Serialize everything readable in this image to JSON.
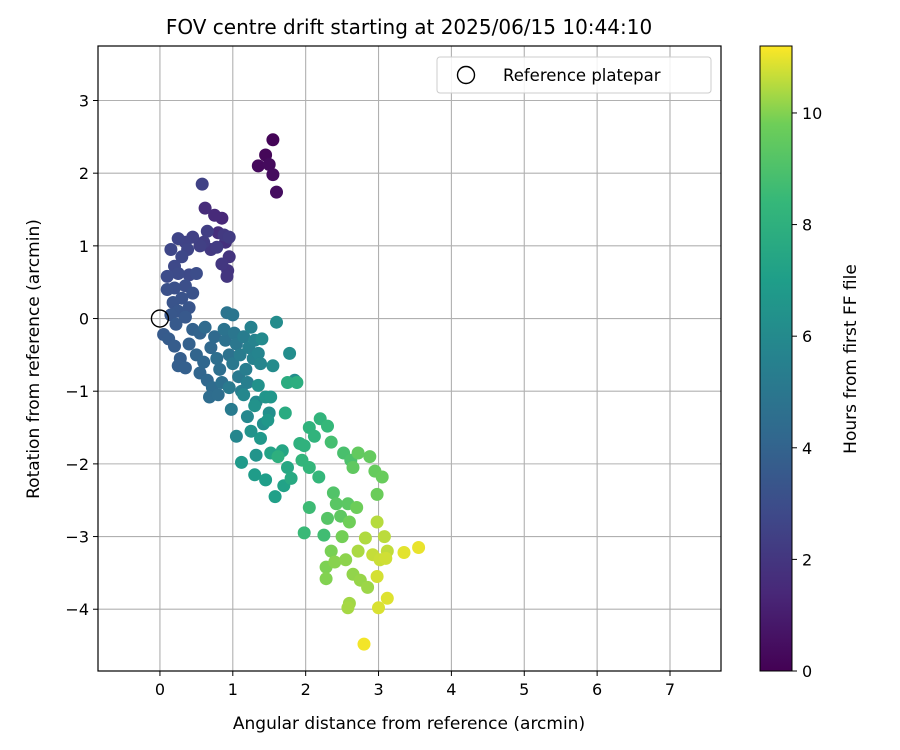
{
  "chart_data": {
    "type": "scatter",
    "title": "FOV centre drift starting at 2025/06/15 10:44:10",
    "xlabel": "Angular distance from reference (arcmin)",
    "ylabel": "Rotation from reference (arcmin)",
    "xlim": [
      -0.85,
      7.7
    ],
    "ylim": [
      -4.85,
      3.75
    ],
    "xticks": [
      0,
      1,
      2,
      3,
      4,
      5,
      6,
      7
    ],
    "yticks": [
      -4,
      -3,
      -2,
      -1,
      0,
      1,
      2,
      3
    ],
    "grid": true,
    "legend": {
      "placement": "top-right",
      "entries": [
        "Reference platepar"
      ]
    },
    "reference_point": {
      "x": 0,
      "y": 0,
      "name": "Reference platepar"
    },
    "colorbar": {
      "label": "Hours from first FF file",
      "range": [
        0,
        11.2
      ],
      "ticks": [
        0,
        2,
        4,
        6,
        8,
        10
      ],
      "colormap": "viridis"
    },
    "series": [
      {
        "points": [
          [
            1.55,
            2.46,
            0.1
          ],
          [
            1.45,
            2.25,
            0.2
          ],
          [
            1.35,
            2.1,
            0.3
          ],
          [
            1.5,
            2.12,
            0.35
          ],
          [
            1.55,
            1.98,
            0.4
          ],
          [
            1.6,
            1.74,
            0.45
          ],
          [
            0.85,
            1.38,
            1.4
          ],
          [
            0.75,
            1.42,
            1.5
          ],
          [
            0.62,
            1.52,
            1.6
          ],
          [
            0.8,
            1.18,
            1.7
          ],
          [
            0.9,
            1.05,
            1.8
          ],
          [
            0.95,
            0.85,
            1.9
          ],
          [
            0.93,
            0.66,
            1.95
          ],
          [
            0.92,
            0.58,
            2.0
          ],
          [
            0.85,
            0.75,
            2.05
          ],
          [
            0.7,
            0.95,
            2.1
          ],
          [
            0.88,
            1.15,
            2.15
          ],
          [
            0.78,
            0.98,
            2.2
          ],
          [
            0.95,
            1.12,
            2.25
          ],
          [
            0.6,
            1.05,
            2.3
          ],
          [
            0.65,
            1.2,
            2.35
          ],
          [
            0.55,
            1.0,
            2.4
          ],
          [
            0.45,
            1.12,
            2.45
          ],
          [
            0.58,
            1.85,
            2.5
          ],
          [
            0.35,
            1.05,
            2.55
          ],
          [
            0.25,
            1.1,
            2.6
          ],
          [
            0.38,
            0.95,
            2.65
          ],
          [
            0.15,
            0.95,
            2.7
          ],
          [
            0.3,
            0.85,
            2.75
          ],
          [
            0.2,
            0.72,
            2.8
          ],
          [
            0.4,
            0.6,
            2.85
          ],
          [
            0.25,
            0.62,
            2.9
          ],
          [
            0.1,
            0.58,
            2.95
          ],
          [
            0.5,
            0.62,
            3.0
          ],
          [
            0.35,
            0.45,
            3.05
          ],
          [
            0.2,
            0.42,
            3.1
          ],
          [
            0.1,
            0.4,
            3.15
          ],
          [
            0.45,
            0.35,
            3.2
          ],
          [
            0.3,
            0.28,
            3.25
          ],
          [
            0.18,
            0.22,
            3.3
          ],
          [
            0.4,
            0.15,
            3.35
          ],
          [
            0.25,
            0.1,
            3.4
          ],
          [
            0.15,
            0.05,
            3.45
          ],
          [
            0.35,
            0.02,
            3.5
          ],
          [
            0.22,
            -0.08,
            3.55
          ],
          [
            0.05,
            -0.22,
            3.6
          ],
          [
            0.12,
            -0.28,
            3.65
          ],
          [
            0.2,
            -0.38,
            3.7
          ],
          [
            0.28,
            -0.55,
            3.75
          ],
          [
            0.25,
            -0.65,
            3.8
          ],
          [
            0.35,
            -0.68,
            3.85
          ],
          [
            0.4,
            -0.35,
            3.9
          ],
          [
            0.45,
            -0.15,
            3.95
          ],
          [
            0.55,
            -0.2,
            4.0
          ],
          [
            0.5,
            -0.5,
            4.05
          ],
          [
            0.55,
            -0.75,
            4.1
          ],
          [
            0.6,
            -0.6,
            4.15
          ],
          [
            0.65,
            -0.85,
            4.2
          ],
          [
            0.7,
            -0.4,
            4.25
          ],
          [
            0.75,
            -0.25,
            4.3
          ],
          [
            0.62,
            -0.12,
            4.35
          ],
          [
            0.72,
            -0.95,
            4.4
          ],
          [
            0.68,
            -1.08,
            4.45
          ],
          [
            0.8,
            -1.05,
            4.5
          ],
          [
            0.78,
            -0.55,
            4.55
          ],
          [
            0.82,
            -0.7,
            4.6
          ],
          [
            0.85,
            -0.88,
            4.65
          ],
          [
            0.9,
            -0.3,
            4.7
          ],
          [
            0.95,
            -0.5,
            4.75
          ],
          [
            0.88,
            -0.15,
            4.8
          ],
          [
            0.92,
            0.08,
            4.85
          ],
          [
            1.0,
            0.05,
            4.9
          ],
          [
            1.02,
            -0.2,
            4.95
          ],
          [
            1.05,
            -0.35,
            5.0
          ],
          [
            1.0,
            -0.62,
            5.05
          ],
          [
            1.08,
            -0.8,
            5.1
          ],
          [
            0.95,
            -0.95,
            5.15
          ],
          [
            0.98,
            -1.25,
            5.2
          ],
          [
            1.1,
            -0.5,
            5.25
          ],
          [
            1.15,
            -0.25,
            5.3
          ],
          [
            1.18,
            -0.7,
            5.35
          ],
          [
            1.12,
            -1.0,
            5.4
          ],
          [
            1.2,
            -0.88,
            5.45
          ],
          [
            1.22,
            -0.4,
            5.5
          ],
          [
            1.25,
            -0.12,
            5.55
          ],
          [
            1.28,
            -0.55,
            5.6
          ],
          [
            1.3,
            -0.3,
            5.65
          ],
          [
            1.35,
            -0.48,
            5.7
          ],
          [
            1.38,
            -0.62,
            5.75
          ],
          [
            1.05,
            -1.62,
            5.8
          ],
          [
            1.15,
            -1.05,
            5.85
          ],
          [
            1.2,
            -1.35,
            5.9
          ],
          [
            1.32,
            -1.15,
            5.95
          ],
          [
            1.4,
            -0.28,
            6.0
          ],
          [
            1.55,
            -0.65,
            6.05
          ],
          [
            1.6,
            -0.05,
            6.1
          ],
          [
            1.78,
            -0.48,
            6.15
          ],
          [
            1.85,
            -0.85,
            6.2
          ],
          [
            1.5,
            -1.3,
            6.25
          ],
          [
            1.42,
            -1.45,
            6.3
          ],
          [
            1.35,
            -0.92,
            6.35
          ],
          [
            1.3,
            -1.2,
            6.4
          ],
          [
            1.25,
            -1.55,
            6.45
          ],
          [
            1.32,
            -1.88,
            6.5
          ],
          [
            1.45,
            -1.08,
            6.55
          ],
          [
            1.52,
            -1.08,
            6.6
          ],
          [
            1.48,
            -1.4,
            6.65
          ],
          [
            1.38,
            -1.65,
            6.7
          ],
          [
            1.12,
            -1.98,
            6.8
          ],
          [
            1.3,
            -2.15,
            6.9
          ],
          [
            1.45,
            -2.22,
            7.0
          ],
          [
            1.58,
            -2.45,
            7.1
          ],
          [
            1.7,
            -2.3,
            7.2
          ],
          [
            1.52,
            -1.85,
            7.3
          ],
          [
            1.68,
            -1.82,
            7.4
          ],
          [
            1.75,
            -2.05,
            7.5
          ],
          [
            1.8,
            -2.2,
            7.6
          ],
          [
            1.72,
            -1.3,
            7.7
          ],
          [
            1.75,
            -0.88,
            7.8
          ],
          [
            1.88,
            -0.88,
            7.9
          ],
          [
            1.62,
            -1.9,
            7.95
          ],
          [
            1.92,
            -1.72,
            8.0
          ],
          [
            1.98,
            -1.75,
            8.05
          ],
          [
            2.05,
            -1.5,
            8.1
          ],
          [
            2.12,
            -1.62,
            8.15
          ],
          [
            2.2,
            -1.38,
            8.2
          ],
          [
            1.95,
            -1.95,
            8.25
          ],
          [
            2.05,
            -2.05,
            8.3
          ],
          [
            2.18,
            -2.18,
            8.35
          ],
          [
            2.3,
            -1.48,
            8.4
          ],
          [
            1.98,
            -2.95,
            8.5
          ],
          [
            2.05,
            -2.6,
            8.6
          ],
          [
            2.25,
            -2.98,
            8.7
          ],
          [
            2.35,
            -1.7,
            8.8
          ],
          [
            2.52,
            -1.85,
            8.9
          ],
          [
            2.62,
            -1.95,
            9.0
          ],
          [
            2.38,
            -2.4,
            9.1
          ],
          [
            2.3,
            -2.75,
            9.2
          ],
          [
            2.42,
            -2.55,
            9.3
          ],
          [
            2.58,
            -2.55,
            9.35
          ],
          [
            2.48,
            -2.72,
            9.4
          ],
          [
            2.65,
            -2.05,
            9.45
          ],
          [
            2.72,
            -1.85,
            9.5
          ],
          [
            2.88,
            -1.9,
            9.55
          ],
          [
            2.95,
            -2.1,
            9.6
          ],
          [
            3.05,
            -2.18,
            9.65
          ],
          [
            2.98,
            -2.42,
            9.7
          ],
          [
            2.7,
            -2.6,
            9.75
          ],
          [
            2.6,
            -2.8,
            9.8
          ],
          [
            2.5,
            -3.0,
            9.85
          ],
          [
            2.35,
            -3.2,
            9.9
          ],
          [
            2.28,
            -3.42,
            9.95
          ],
          [
            2.28,
            -3.58,
            10.0
          ],
          [
            2.4,
            -3.35,
            10.05
          ],
          [
            2.55,
            -3.32,
            10.1
          ],
          [
            2.65,
            -3.52,
            10.15
          ],
          [
            2.75,
            -3.6,
            10.2
          ],
          [
            2.85,
            -3.7,
            10.25
          ],
          [
            2.6,
            -3.92,
            10.3
          ],
          [
            2.58,
            -3.98,
            10.35
          ],
          [
            2.72,
            -3.2,
            10.4
          ],
          [
            2.82,
            -3.02,
            10.45
          ],
          [
            2.98,
            -2.8,
            10.5
          ],
          [
            3.08,
            -3.0,
            10.55
          ],
          [
            3.12,
            -3.2,
            10.6
          ],
          [
            2.92,
            -3.25,
            10.65
          ],
          [
            3.02,
            -3.32,
            10.7
          ],
          [
            3.1,
            -3.3,
            10.75
          ],
          [
            2.98,
            -3.55,
            10.8
          ],
          [
            3.0,
            -3.98,
            10.85
          ],
          [
            3.12,
            -3.85,
            10.9
          ],
          [
            3.35,
            -3.22,
            10.95
          ],
          [
            3.55,
            -3.15,
            11.0
          ],
          [
            2.8,
            -4.48,
            11.1
          ]
        ]
      }
    ]
  }
}
